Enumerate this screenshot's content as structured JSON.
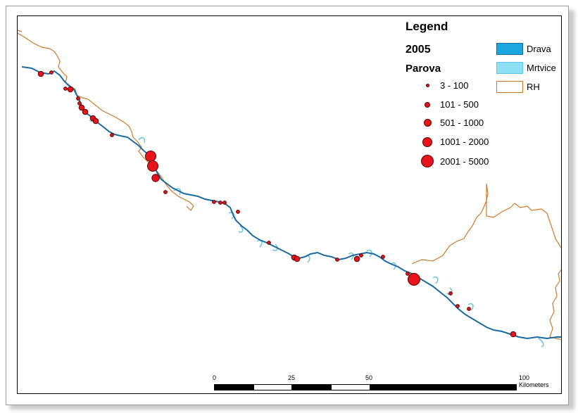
{
  "legend": {
    "title": "Legend",
    "year": "2005",
    "pairs_title": "Parova",
    "classes": [
      {
        "label": "3 - 100"
      },
      {
        "label": "101 - 500"
      },
      {
        "label": "501 - 1000"
      },
      {
        "label": "1001 - 2000"
      },
      {
        "label": "2001 - 5000"
      }
    ],
    "layers": [
      {
        "label": "Drava",
        "color": "#1aa7e0"
      },
      {
        "label": "Mrtvice",
        "color": "#8ee0f4"
      },
      {
        "label": "RH",
        "color": "#d07a2a"
      }
    ]
  },
  "scale": {
    "labels": [
      "0",
      "25",
      "50",
      "100 Kilometers"
    ]
  },
  "colors": {
    "river": "#1a6aa0",
    "oxbow": "#5cc6e8",
    "border": "#d07a2a",
    "point": "#e8141c"
  }
}
